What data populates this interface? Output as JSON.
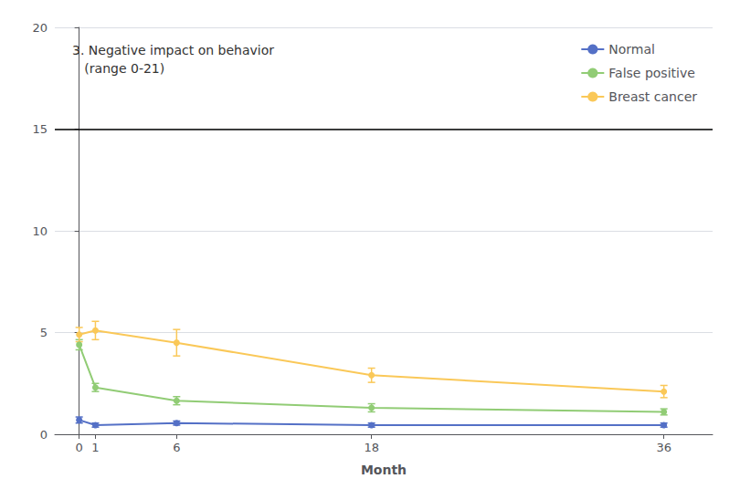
{
  "chart_data": {
    "type": "line",
    "title": "3. Negative impact on behavior\n   (range 0-21)",
    "xlabel": "Month",
    "x": [
      0,
      1,
      6,
      18,
      36
    ],
    "xlim": [
      -1.5,
      39
    ],
    "xticks": [
      0,
      1,
      6,
      18,
      36
    ],
    "ylim": [
      0,
      20
    ],
    "yticks": [
      0,
      5,
      10,
      15,
      20
    ],
    "grid": true,
    "legend": "upper right",
    "marker": "circle",
    "hline": 15,
    "series": [
      {
        "name": "Normal",
        "values": [
          0.7,
          0.45,
          0.55,
          0.45,
          0.45
        ],
        "errors": [
          0.15,
          0.1,
          0.1,
          0.1,
          0.1
        ]
      },
      {
        "name": "False positive",
        "values": [
          4.4,
          2.3,
          1.65,
          1.3,
          1.1
        ],
        "errors": [
          0.25,
          0.2,
          0.2,
          0.2,
          0.15
        ]
      },
      {
        "name": "Breast cancer",
        "values": [
          4.9,
          5.1,
          4.5,
          2.9,
          2.1
        ],
        "errors": [
          0.35,
          0.45,
          0.65,
          0.35,
          0.3
        ]
      }
    ]
  }
}
